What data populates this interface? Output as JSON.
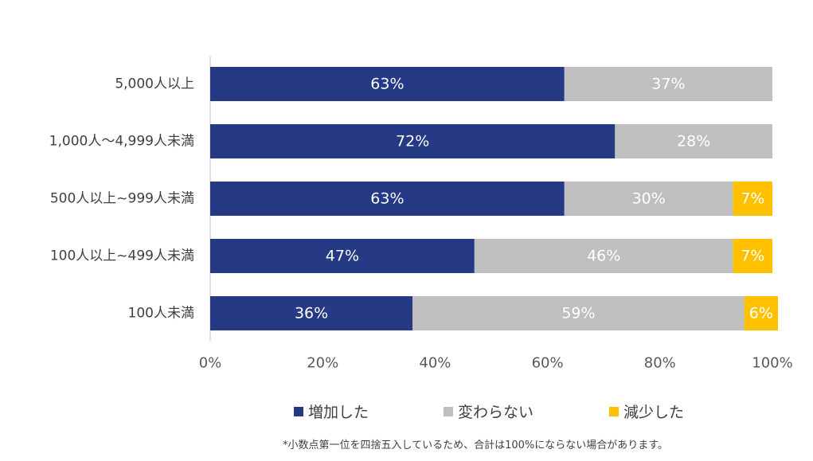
{
  "chart_data": {
    "type": "bar",
    "orientation": "horizontal",
    "stacked": true,
    "categories": [
      "5,000人以上",
      "1,000人〜4,999人未満",
      "500人以上~999人未満",
      "100人以上~499人未満",
      "100人未満"
    ],
    "series": [
      {
        "name": "増加した",
        "color": "#253985",
        "values": [
          63,
          72,
          63,
          47,
          36
        ]
      },
      {
        "name": "変わらない",
        "color": "#bfbfbf",
        "values": [
          37,
          28,
          30,
          46,
          59
        ]
      },
      {
        "name": "減少した",
        "color": "#ffc000",
        "values": [
          0,
          0,
          7,
          7,
          6
        ]
      }
    ],
    "xlim": [
      0,
      100
    ],
    "xticks": [
      "0%",
      "20%",
      "40%",
      "60%",
      "80%",
      "100%"
    ],
    "grid": false,
    "legend_position": "bottom"
  },
  "footnote": "*小数点第一位を四捨五入しているため、合計は100%にならない場合があります。"
}
